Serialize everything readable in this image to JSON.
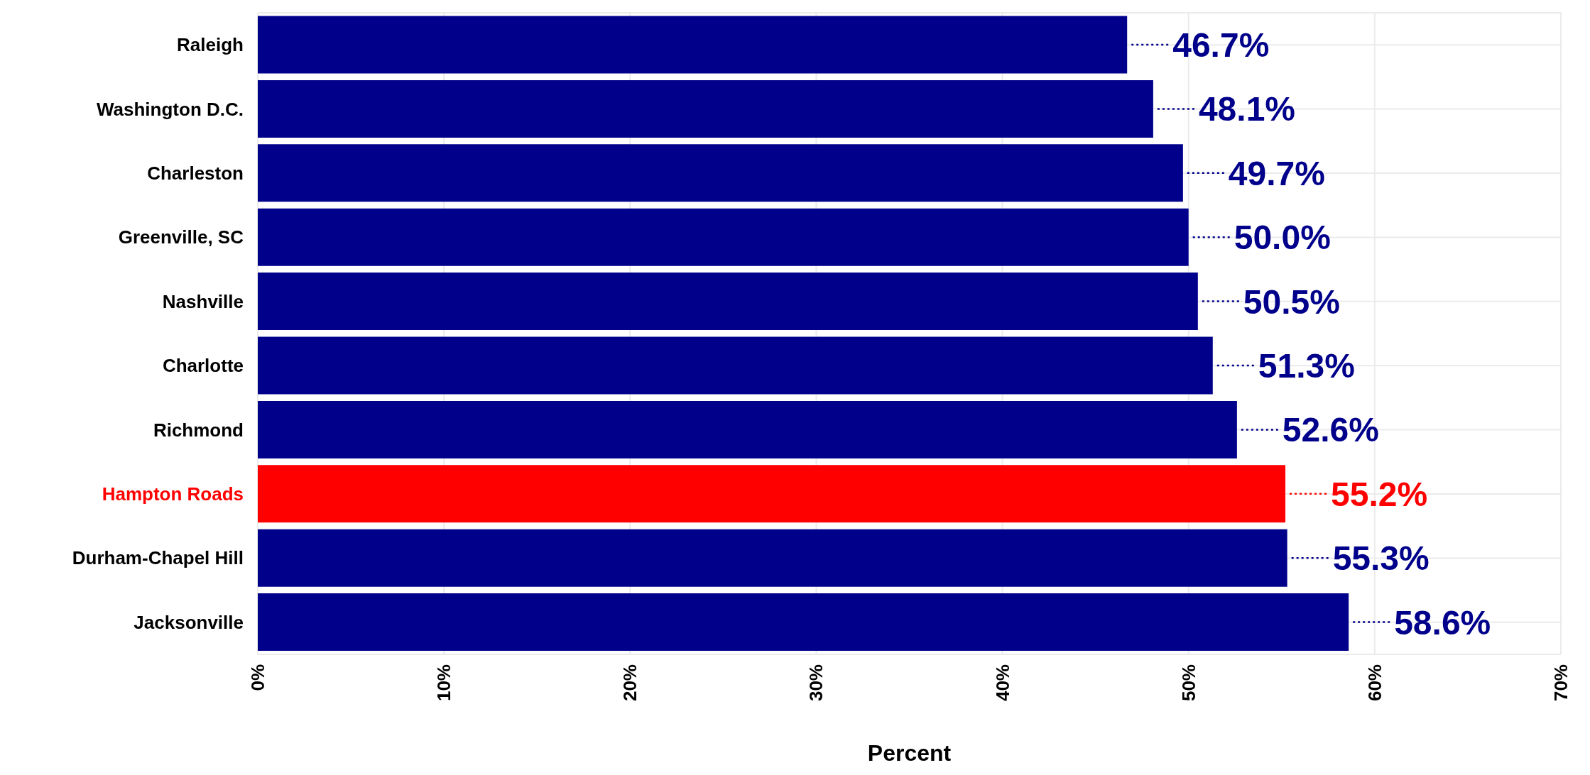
{
  "chart_data": {
    "type": "bar",
    "orientation": "horizontal",
    "xlabel": "Percent",
    "categories": [
      "Raleigh",
      "Washington D.C.",
      "Charleston",
      "Greenville, SC",
      "Nashville",
      "Charlotte",
      "Richmond",
      "Hampton Roads",
      "Durham-Chapel Hill",
      "Jacksonville"
    ],
    "values": [
      46.7,
      48.1,
      49.7,
      50.0,
      50.5,
      51.3,
      52.6,
      55.2,
      55.3,
      58.6
    ],
    "value_labels": [
      "46.7%",
      "48.1%",
      "49.7%",
      "50.0%",
      "50.5%",
      "51.3%",
      "52.6%",
      "55.2%",
      "55.3%",
      "58.6%"
    ],
    "colors": [
      "#00008b",
      "#00008b",
      "#00008b",
      "#00008b",
      "#00008b",
      "#00008b",
      "#00008b",
      "#ff0000",
      "#00008b",
      "#00008b"
    ],
    "xlim": [
      0,
      70
    ],
    "xticks": [
      {
        "value": 0,
        "label": "0%"
      },
      {
        "value": 10,
        "label": "10%"
      },
      {
        "value": 20,
        "label": "20%"
      },
      {
        "value": 30,
        "label": "30%"
      },
      {
        "value": 40,
        "label": "40%"
      },
      {
        "value": 50,
        "label": "50%"
      },
      {
        "value": 60,
        "label": "60%"
      },
      {
        "value": 70,
        "label": "70%"
      }
    ],
    "grid": true
  }
}
